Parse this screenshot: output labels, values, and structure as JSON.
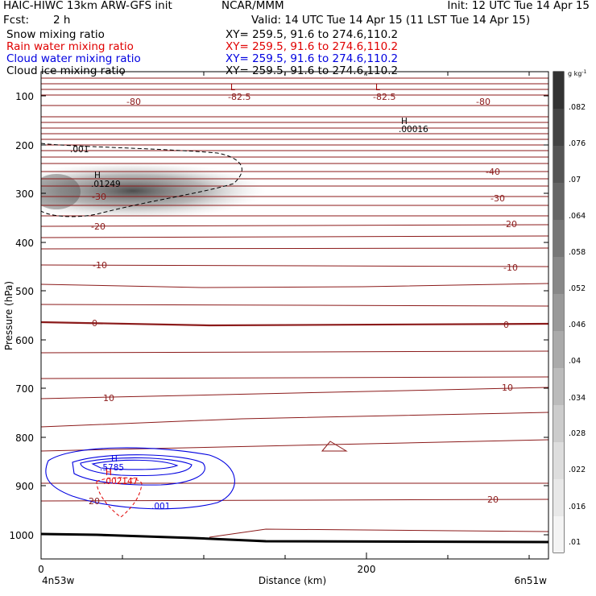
{
  "header": {
    "left_title": "HAIC-HIWC 13km ARW-GFS init",
    "center_title": "NCAR/MMM",
    "init": "Init: 12 UTC Tue 14 Apr 15",
    "fcst_label": "Fcst:",
    "fcst_value": "2 h",
    "valid": "Valid: 14 UTC Tue 14 Apr 15 (11 LST Tue 14 Apr 15)"
  },
  "fields": [
    {
      "name": "Snow mixing ratio",
      "xy": "XY= 259.5, 91.6 to 274.6,110.2",
      "color": "#000000"
    },
    {
      "name": "Rain water mixing ratio",
      "xy": "XY= 259.5, 91.6 to 274.6,110.2",
      "color": "#e00000"
    },
    {
      "name": "Cloud water mixing ratio",
      "xy": "XY= 259.5, 91.6 to 274.6,110.2",
      "color": "#0000e0"
    },
    {
      "name": "Cloud ice mixing ratio",
      "xy": "XY= 259.5, 91.6 to 274.6,110.2",
      "color": "#000000"
    }
  ],
  "chart_data": {
    "type": "cross-section",
    "xlabel": "Distance (km)",
    "ylabel": "Pressure (hPa)",
    "x_ticks": [
      "0",
      "200"
    ],
    "xlim_km": [
      0,
      312
    ],
    "y_ticks": [
      "100",
      "200",
      "300",
      "400",
      "500",
      "600",
      "700",
      "800",
      "900",
      "1000"
    ],
    "ylim_hPa": [
      1050,
      60
    ],
    "left_endpoint": "4n53w",
    "right_endpoint": "6n51w",
    "colorbar": {
      "unit": "g kg",
      "unit_exponent": "-1",
      "levels": [
        ".01",
        ".016",
        ".022",
        ".028",
        ".034",
        ".04",
        ".046",
        ".052",
        ".058",
        ".064",
        ".07",
        ".076",
        ".082"
      ]
    },
    "temperature_labels": [
      "-82.5",
      "-82.5",
      "-80",
      "-80",
      "-40",
      "-30",
      "-30",
      "-20",
      "-20",
      "-10",
      "-10",
      "0",
      "0",
      "10",
      "10",
      "20",
      "20"
    ],
    "extrema": [
      {
        "kind": "L",
        "label": "L",
        "value": "-82.5",
        "color": "#a00000"
      },
      {
        "kind": "L",
        "label": "L",
        "value": "-82.5",
        "color": "#a00000"
      },
      {
        "kind": "H",
        "label": "H",
        "value": ".00016",
        "color": "#000000"
      },
      {
        "kind": "H",
        "label": "H",
        "value": ".01249",
        "color": "#000000"
      },
      {
        "kind": "H",
        "label": "H",
        "value": ".5785",
        "color": "#0000e0"
      },
      {
        "kind": "H",
        "label": "H",
        "value": ".002147",
        "color": "#e00000"
      }
    ],
    "contour_labels": [
      {
        "value": ".001",
        "color": "#000000"
      },
      {
        "value": ".001",
        "color": "#0000e0"
      }
    ],
    "colors": {
      "temperature": "#8b1a1a",
      "cloud_water": "#0000e0",
      "rain_water": "#e00000",
      "ice": "#000000",
      "terrain": "#000000"
    }
  }
}
